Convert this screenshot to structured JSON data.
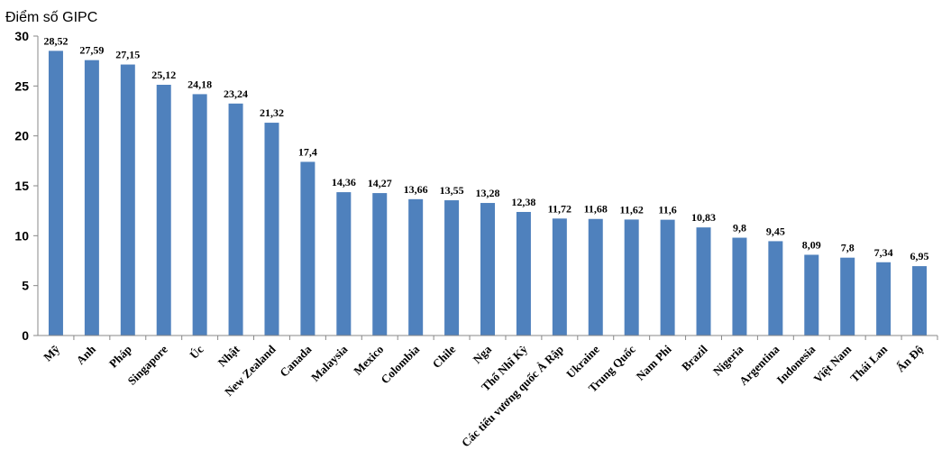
{
  "chart_data": {
    "type": "bar",
    "ylabel": "Điểm số GIPC",
    "ylim": [
      0,
      30
    ],
    "yticks": [
      0,
      5,
      10,
      15,
      20,
      25,
      30
    ],
    "grid": false,
    "bar_color": "#4F81BD",
    "categories": [
      "Mỹ",
      "Anh",
      "Pháp",
      "Singapore",
      "Úc",
      "Nhật",
      "New Zealand",
      "Canada",
      "Malaysia",
      "Mexico",
      "Colombia",
      "Chile",
      "Nga",
      "Thổ Nhĩ Kỳ",
      "Các tiểu vương quốc Ả Rập",
      "Ukraine",
      "Trung Quốc",
      "Nam Phi",
      "Brazil",
      "Nigeria",
      "Argentina",
      "Indonesia",
      "Việt Nam",
      "Thái Lan",
      "Ấn Độ"
    ],
    "values": [
      28.52,
      27.59,
      27.15,
      25.12,
      24.18,
      23.24,
      21.32,
      17.4,
      14.36,
      14.27,
      13.66,
      13.55,
      13.28,
      12.38,
      11.72,
      11.68,
      11.62,
      11.6,
      10.83,
      9.8,
      9.45,
      8.09,
      7.8,
      7.34,
      6.95
    ],
    "value_labels": [
      "28,52",
      "27,59",
      "27,15",
      "25,12",
      "24,18",
      "23,24",
      "21,32",
      "17,4",
      "14,36",
      "14,27",
      "13,66",
      "13,55",
      "13,28",
      "12,38",
      "11,72",
      "11,68",
      "11,62",
      "11,6",
      "10,83",
      "9,8",
      "9,45",
      "8,09",
      "7,8",
      "7,34",
      "6,95"
    ]
  }
}
